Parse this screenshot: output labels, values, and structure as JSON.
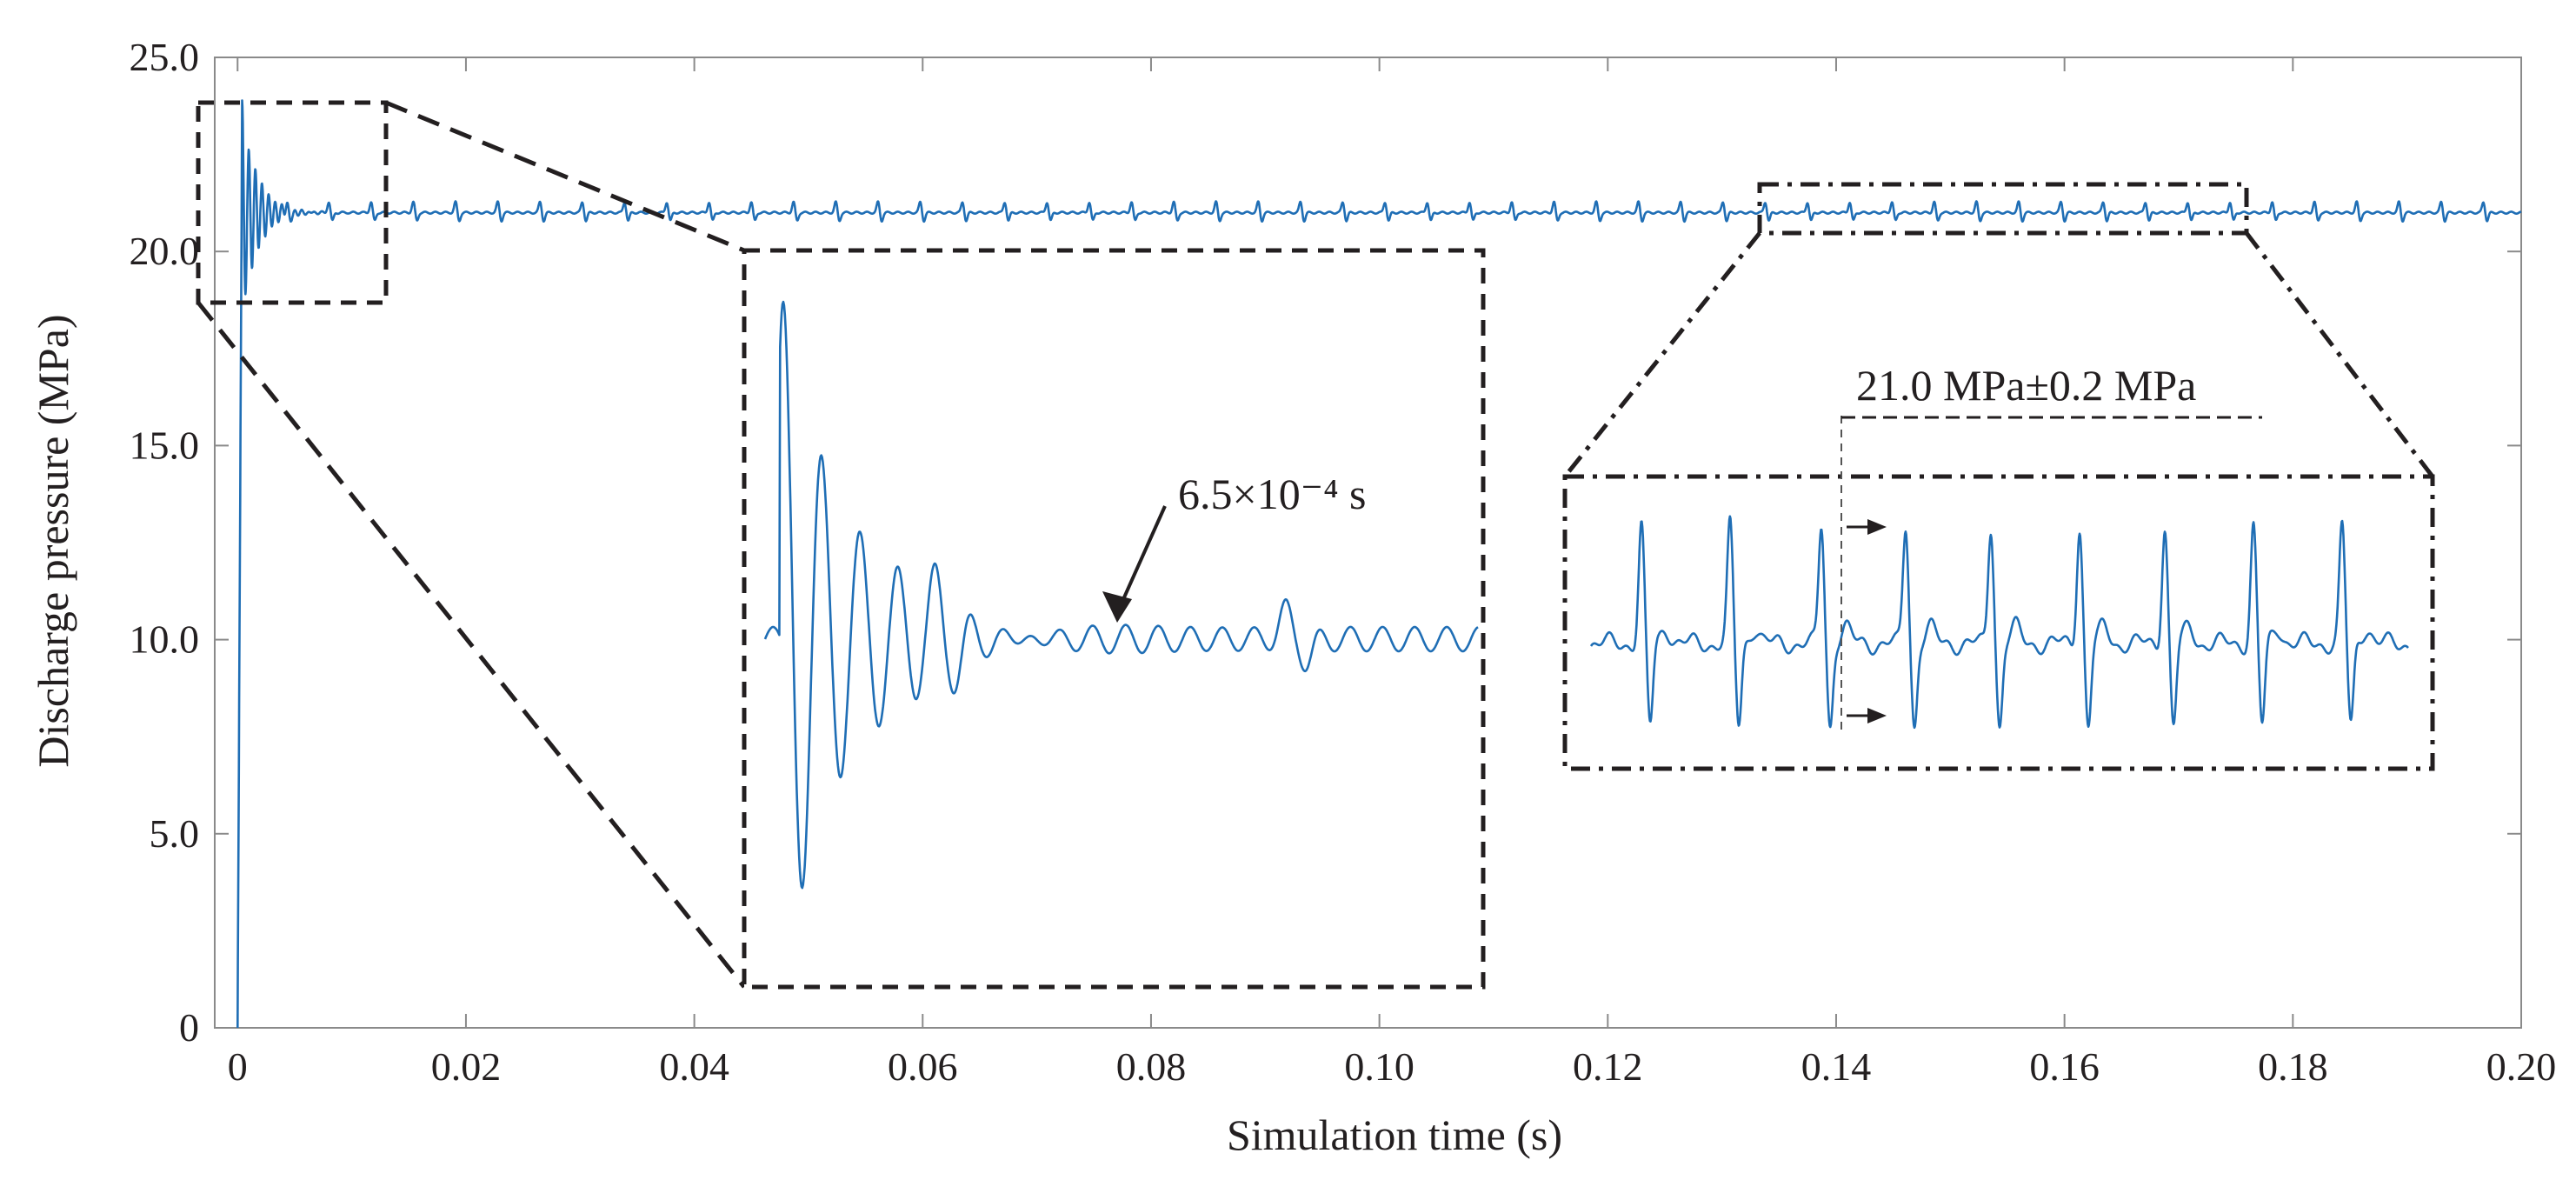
{
  "chart_data": {
    "type": "line",
    "title": "",
    "xlabel": "Simulation time (s)",
    "ylabel": "Discharge pressure (MPa)",
    "xlim": [
      -0.002,
      0.2
    ],
    "ylim": [
      0,
      25
    ],
    "grid": false,
    "line_color": "#1f6eb5",
    "x_ticks": [
      0,
      0.02,
      0.04,
      0.06,
      0.08,
      0.1,
      0.12,
      0.14,
      0.16,
      0.18,
      0.2
    ],
    "x_tick_labels": [
      "0",
      "0.02",
      "0.04",
      "0.06",
      "0.08",
      "0.10",
      "0.12",
      "0.14",
      "0.16",
      "0.18",
      "0.20"
    ],
    "y_ticks": [
      0,
      5,
      10,
      15,
      20,
      25
    ],
    "y_tick_labels": [
      "0",
      "5.0",
      "10.0",
      "15.0",
      "20.0",
      "25.0"
    ],
    "series": [
      {
        "name": "Discharge pressure",
        "steady_value": 21.0,
        "band": 0.2,
        "spike_period": 0.0037,
        "startup_peak": 23.8,
        "startup_min": 18.8,
        "points": [
          [
            0,
            0
          ],
          [
            0.0002,
            10
          ],
          [
            0.0004,
            23.8
          ],
          [
            0.0008,
            19.0
          ],
          [
            0.0012,
            23.0
          ],
          [
            0.0016,
            19.3
          ],
          [
            0.002,
            22.2
          ],
          [
            0.003,
            20.3
          ],
          [
            0.004,
            21.4
          ],
          [
            0.006,
            20.9
          ],
          [
            0.008,
            21.05
          ],
          [
            0.2,
            21.0
          ]
        ]
      }
    ],
    "zoom_boxes": [
      {
        "name": "start-up zoom",
        "style": "dashed",
        "x_range": [
          -0.002,
          0.014
        ],
        "y_range": [
          18.8,
          24.0
        ]
      },
      {
        "name": "steady zoom",
        "style": "dash-dot",
        "x_range": [
          0.134,
          0.176
        ],
        "y_range": [
          20.6,
          21.8
        ]
      }
    ],
    "annotations": [
      {
        "text": "6.5×10⁻⁴ s",
        "target": "settling point in start-up inset"
      },
      {
        "text": "21.0 MPa±0.2 MPa",
        "target": "fluctuation band in steady-state inset"
      }
    ]
  }
}
